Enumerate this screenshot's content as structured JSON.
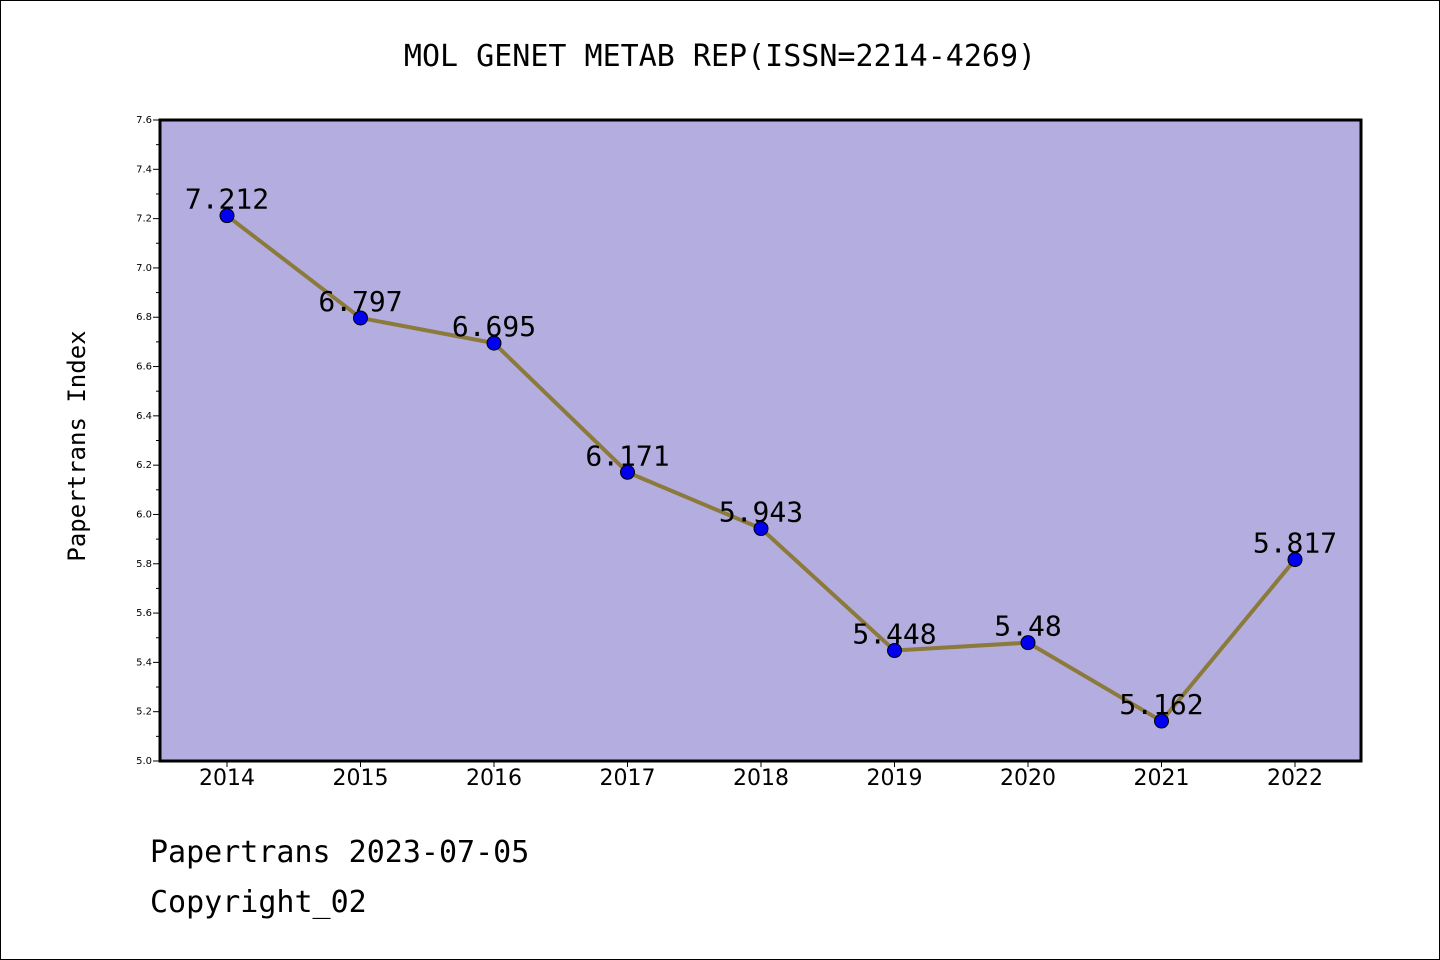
{
  "chart_data": {
    "type": "line",
    "title": "MOL GENET METAB REP(ISSN=2214-4269)",
    "xlabel": "",
    "ylabel": "Papertrans Index",
    "categories": [
      "2014",
      "2015",
      "2016",
      "2017",
      "2018",
      "2019",
      "2020",
      "2021",
      "2022"
    ],
    "series": [
      {
        "values": [
          7.212,
          6.797,
          6.695,
          6.171,
          5.943,
          5.448,
          5.48,
          5.162,
          5.817
        ]
      }
    ],
    "data_labels": [
      "7.212",
      "6.797",
      "6.695",
      "6.171",
      "5.943",
      "5.448",
      "5.48",
      "5.162",
      "5.817"
    ],
    "ylim": [
      5.0,
      7.6
    ],
    "y_ticks": [
      "5.0",
      "5.2",
      "5.4",
      "5.6",
      "5.8",
      "6.0",
      "6.2",
      "6.4",
      "6.6",
      "6.8",
      "7.0",
      "7.2",
      "7.4",
      "7.6"
    ],
    "grid": false,
    "legend": "none",
    "colors": {
      "plot_background": "#b4aee0",
      "line": "#8b7a3c",
      "marker": "#0000ee",
      "axes": "#000000"
    }
  },
  "footer": {
    "date_line": "Papertrans 2023-07-05",
    "copyright_line": "Copyright_02"
  }
}
